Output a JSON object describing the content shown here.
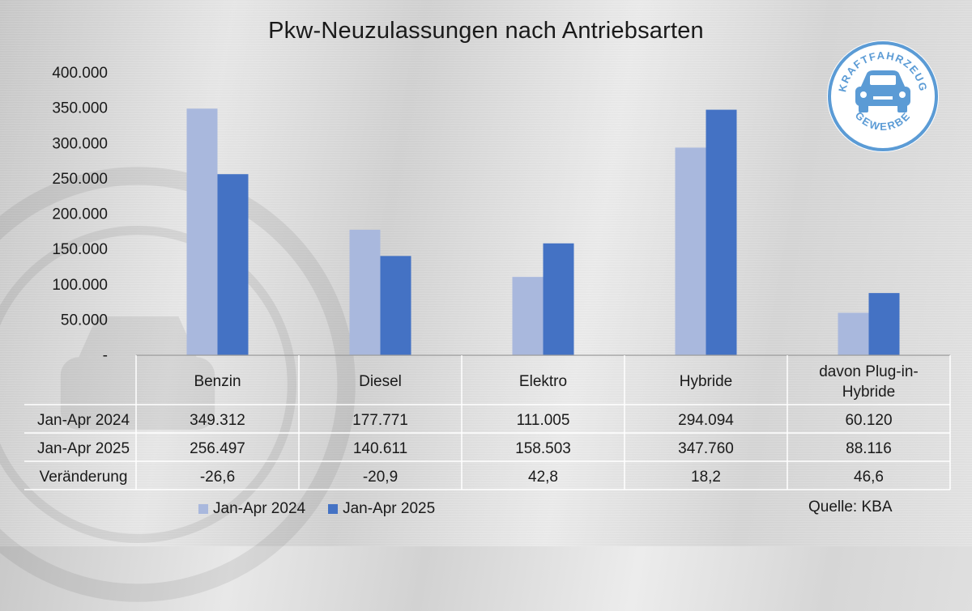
{
  "chart_data": {
    "type": "bar",
    "title": "Pkw-Neuzulassungen nach Antriebsarten",
    "categories": [
      "Benzin",
      "Diesel",
      "Elektro",
      "Hybride",
      "davon Plug-in-Hybride"
    ],
    "series": [
      {
        "name": "Jan-Apr 2024",
        "values": [
          349312,
          177771,
          111005,
          294094,
          60120
        ],
        "color": "#a9b8dd"
      },
      {
        "name": "Jan-Apr 2025",
        "values": [
          256497,
          140611,
          158503,
          347760,
          88116
        ],
        "color": "#4472c4"
      }
    ],
    "ylim": [
      0,
      400000
    ],
    "yticks": [
      "-",
      "50.000",
      "100.000",
      "150.000",
      "200.000",
      "250.000",
      "300.000",
      "350.000",
      "400.000"
    ],
    "grid": false,
    "legend": "bottom",
    "table": {
      "rows": [
        {
          "label": "Jan-Apr 2024",
          "cells": [
            "349.312",
            "177.771",
            "111.005",
            "294.094",
            "60.120"
          ]
        },
        {
          "label": "Jan-Apr 2025",
          "cells": [
            "256.497",
            "140.611",
            "158.503",
            "347.760",
            "88.116"
          ]
        },
        {
          "label": "Veränderung",
          "cells": [
            "-26,6",
            "-20,9",
            "42,8",
            "18,2",
            "46,6"
          ]
        }
      ]
    }
  },
  "source": "Quelle: KBA",
  "logo": {
    "top_text": "KRAFTFAHRZEUG",
    "bottom_text": "GEWERBE",
    "icon": "car-icon",
    "color": "#5b9bd5"
  }
}
